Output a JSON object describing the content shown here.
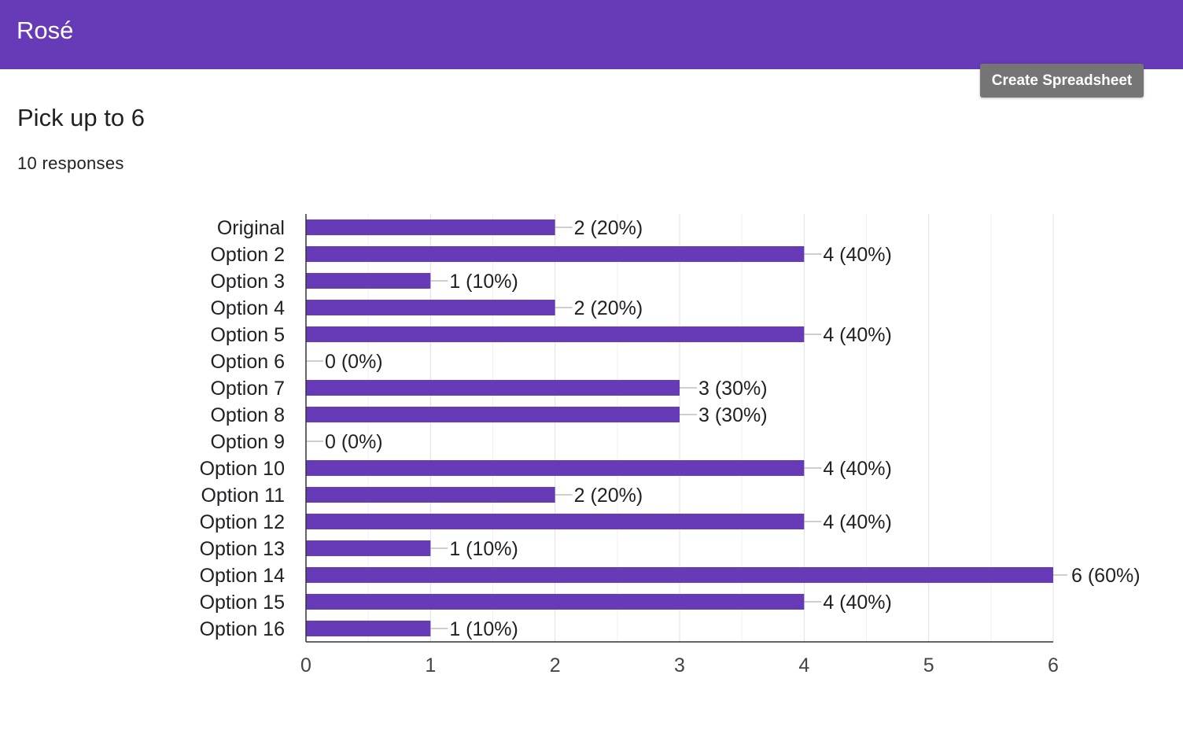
{
  "header": {
    "title": "Rosé"
  },
  "toolbar": {
    "create_spreadsheet_label": "Create Spreadsheet"
  },
  "question": {
    "title": "Pick up to 6",
    "responses": "10 responses"
  },
  "colors": {
    "accent": "#673ab7",
    "button": "#757575"
  },
  "chart_data": {
    "type": "bar",
    "orientation": "horizontal",
    "categories": [
      "Original",
      "Option 2",
      "Option 3",
      "Option 4",
      "Option 5",
      "Option 6",
      "Option 7",
      "Option 8",
      "Option 9",
      "Option 10",
      "Option 11",
      "Option 12",
      "Option 13",
      "Option 14",
      "Option 15",
      "Option 16"
    ],
    "values": [
      2,
      4,
      1,
      2,
      4,
      0,
      3,
      3,
      0,
      4,
      2,
      4,
      1,
      6,
      4,
      1
    ],
    "data_labels": [
      "2 (20%)",
      "4 (40%)",
      "1 (10%)",
      "2 (20%)",
      "4 (40%)",
      "0 (0%)",
      "3 (30%)",
      "3 (30%)",
      "0 (0%)",
      "4 (40%)",
      "2 (20%)",
      "4 (40%)",
      "1 (10%)",
      "6 (60%)",
      "4 (40%)",
      "1 (10%)"
    ],
    "xlim": [
      0,
      6
    ],
    "xticks": [
      "0",
      "1",
      "2",
      "3",
      "4",
      "5",
      "6"
    ],
    "grid": true,
    "bar_color": "#673ab7"
  }
}
